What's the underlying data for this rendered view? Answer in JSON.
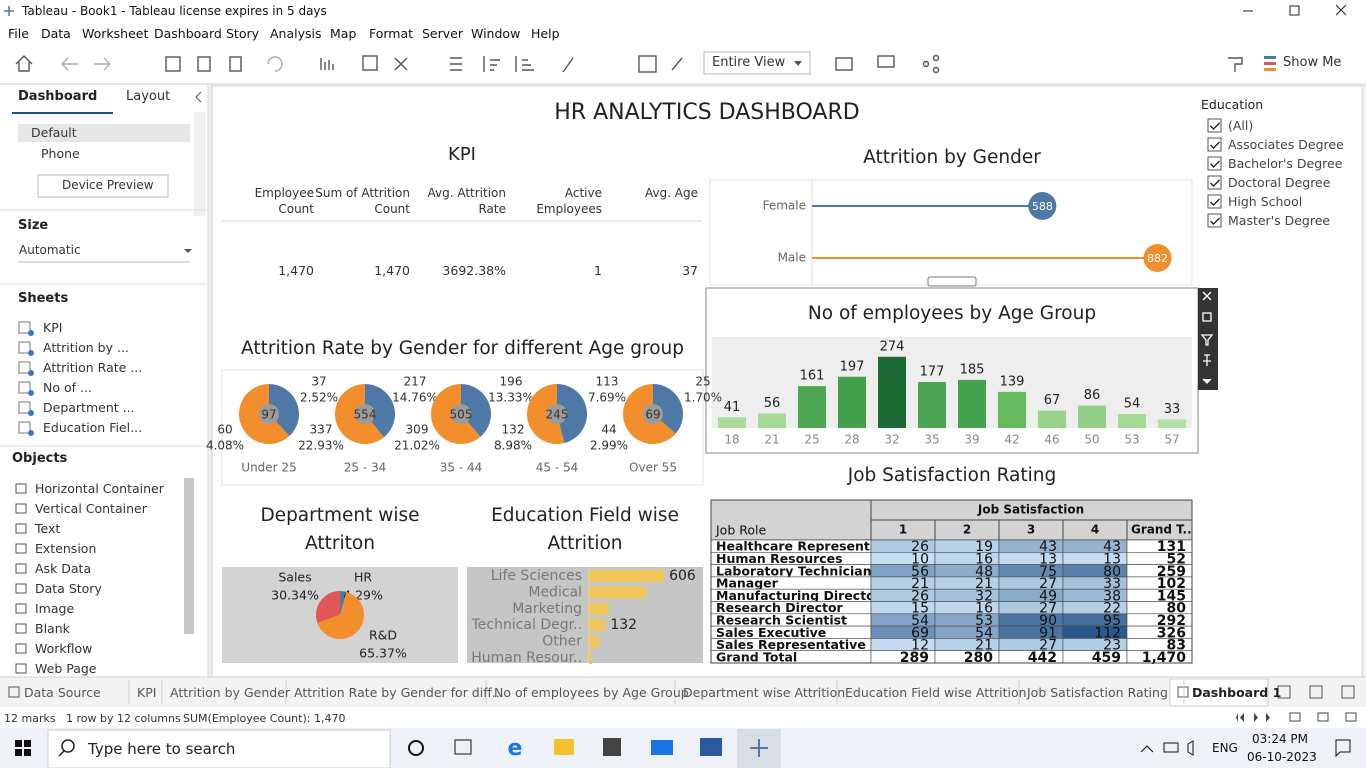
{
  "window": {
    "title": "Tableau - Book1 - Tableau license expires in 5 days"
  },
  "menu": [
    "File",
    "Data",
    "Worksheet",
    "Dashboard",
    "Story",
    "Analysis",
    "Map",
    "Format",
    "Server",
    "Window",
    "Help"
  ],
  "toolbar": {
    "fit": "Entire View",
    "show_me": "Show Me"
  },
  "side_panel": {
    "tabs": [
      "Dashboard",
      "Layout"
    ],
    "devices": [
      "Default",
      "Phone"
    ],
    "device_preview": "Device Preview",
    "size_heading": "Size",
    "size_value": "Automatic",
    "sheets_heading": "Sheets",
    "sheets": [
      "KPI",
      "Attrition by ...",
      "Attrition Rate ...",
      "No of ...",
      "Department ...",
      "Education Fiel..."
    ],
    "objects_heading": "Objects",
    "objects": [
      "Horizontal Container",
      "Vertical Container",
      "Text",
      "Extension",
      "Ask Data",
      "Data Story",
      "Image",
      "Blank",
      "Workflow",
      "Web Page"
    ]
  },
  "dashboard_title": "HR ANALYTICS DASHBOARD",
  "kpi": {
    "title": "KPI",
    "headers": [
      "Employee Count",
      "Sum of Attrition Count",
      "Avg. Attrition Rate",
      "Active Employees",
      "Avg. Age"
    ],
    "values": [
      "1,470",
      "1,470",
      "3692.38%",
      "1",
      "37"
    ]
  },
  "chart_data": [
    {
      "type": "lollipop",
      "title": "Attrition by Gender",
      "categories": [
        "Female",
        "Male"
      ],
      "values": [
        588,
        882
      ],
      "colors": [
        "#4e79a7",
        "#f28e2b"
      ],
      "xlim": [
        0,
        970
      ]
    },
    {
      "type": "bar",
      "title": "No of employees by Age Group",
      "categories": [
        "18",
        "21",
        "25",
        "28",
        "32",
        "35",
        "39",
        "42",
        "46",
        "50",
        "53",
        "57"
      ],
      "values": [
        41,
        56,
        161,
        197,
        274,
        177,
        185,
        139,
        67,
        86,
        54,
        33
      ],
      "colors": [
        "#a9db9c",
        "#a4d996",
        "#4ea653",
        "#45a04c",
        "#1e6a34",
        "#4aa451",
        "#47a24e",
        "#67b95e",
        "#99d28b",
        "#93cf86",
        "#a5d997",
        "#b3e0a6"
      ],
      "ylim": [
        0,
        350
      ]
    },
    {
      "type": "multi_pie",
      "title": "Attrition Rate by Gender for different Age group",
      "categories": [
        "Under 25",
        "25 - 34",
        "35 - 44",
        "45 - 54",
        "Over 55"
      ],
      "totals": [
        97,
        554,
        505,
        245,
        69
      ],
      "series": [
        {
          "color": "#4e79a7",
          "values": [
            37,
            217,
            196,
            113,
            25
          ],
          "share_labels": [
            "2.52%",
            "14.76%",
            "13.33%",
            "7.69%",
            "1.70%"
          ]
        },
        {
          "color": "#f28e2b",
          "values": [
            60,
            337,
            309,
            132,
            44
          ],
          "share_labels": [
            "4.08%",
            "22.93%",
            "21.02%",
            "8.98%",
            "2.99%"
          ]
        }
      ]
    },
    {
      "type": "pie",
      "title": "Department wise Attriton",
      "categories": [
        "Sales",
        "HR",
        "R&D"
      ],
      "values": [
        30.34,
        4.29,
        65.37
      ],
      "value_labels": [
        "30.34%",
        "4.29%",
        "65.37%"
      ],
      "colors": [
        "#e15759",
        "#4e79a7",
        "#f28e2b"
      ]
    },
    {
      "type": "hbar",
      "title": "Education Field wise Attrition",
      "categories": [
        "Life Sciences",
        "Medical",
        "Marketing",
        "Technical Degr..",
        "Other",
        "Human Resour.."
      ],
      "values": [
        606,
        464,
        159,
        132,
        82,
        27
      ],
      "value_labels": [
        "606",
        null,
        null,
        "132",
        null,
        null
      ],
      "color": "#f1c75b",
      "xlim": [
        0,
        920
      ]
    }
  ],
  "job_satisfaction": {
    "title": "Job Satisfaction Rating",
    "column_group": "Job Satisfaction",
    "row_header": "Job Role",
    "columns": [
      "1",
      "2",
      "3",
      "4",
      "Grand T.."
    ],
    "rows": [
      [
        "Healthcare Representat..",
        26,
        19,
        43,
        43,
        131
      ],
      [
        "Human Resources",
        10,
        16,
        13,
        13,
        52
      ],
      [
        "Laboratory Technician",
        56,
        48,
        75,
        80,
        259
      ],
      [
        "Manager",
        21,
        21,
        27,
        33,
        102
      ],
      [
        "Manufacturing Director",
        26,
        32,
        49,
        38,
        145
      ],
      [
        "Research Director",
        15,
        16,
        27,
        22,
        80
      ],
      [
        "Research Scientist",
        54,
        53,
        90,
        95,
        292
      ],
      [
        "Sales Executive",
        69,
        54,
        91,
        112,
        326
      ],
      [
        "Sales Representative",
        12,
        21,
        27,
        23,
        83
      ],
      [
        "Grand Total",
        289,
        280,
        442,
        459,
        "1,470"
      ]
    ]
  },
  "filter": {
    "title": "Education",
    "options": [
      "(All)",
      "Associates Degree",
      "Bachelor's Degree",
      "Doctoral Degree",
      "High School",
      "Master's Degree"
    ]
  },
  "sheet_tabs": [
    "Data Source",
    "KPI",
    "Attrition by Gender",
    "Attrition Rate by Gender for diff...",
    "No of employees by Age Group",
    "Department wise Attrition",
    "Education Field wise Attrition",
    "Job Satisfaction Rating",
    "Dashboard 1"
  ],
  "status": [
    "12 marks",
    "1 row by 12 columns",
    "SUM(Employee Count): 1,470"
  ],
  "taskbar": {
    "search": "Type here to search",
    "lang": "ENG",
    "time": "03:24 PM",
    "date": "06-10-2023"
  }
}
